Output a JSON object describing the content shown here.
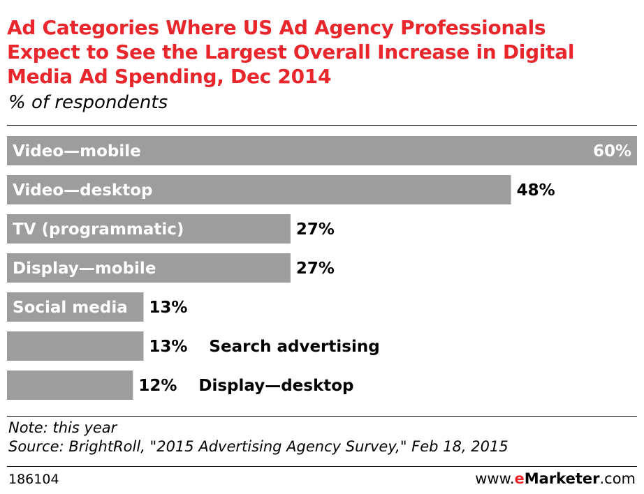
{
  "header": {
    "title_lines": [
      "Ad Categories Where US Ad Agency Professionals",
      "Expect to See the Largest Overall Increase in Digital",
      "Media Ad Spending, Dec 2014"
    ],
    "subtitle": "% of respondents"
  },
  "chart_data": {
    "type": "bar",
    "orientation": "horizontal",
    "categories": [
      "Video—mobile",
      "Video—desktop",
      "TV (programmatic)",
      "Display—mobile",
      "Social media",
      "Search advertising",
      "Display—desktop"
    ],
    "values": [
      60,
      48,
      27,
      27,
      13,
      13,
      12
    ],
    "value_labels": [
      "60%",
      "48%",
      "27%",
      "27%",
      "13%",
      "13%",
      "12%"
    ],
    "unit": "%",
    "xlim": [
      0,
      60
    ],
    "grid": false,
    "legend": "none",
    "bar_color": "#9d9d9d"
  },
  "footer": {
    "note": "Note: this year",
    "source": "Source: BrightRoll, \"2015 Advertising Agency Survey,\" Feb 18, 2015",
    "chart_id": "186104",
    "brand_prefix": "www.",
    "brand_e": "e",
    "brand_main": "Marketer",
    "brand_suffix": ".com"
  },
  "colors": {
    "title": "#e8262b",
    "bar": "#9d9d9d",
    "bar_text": "#ffffff",
    "text": "#000000"
  }
}
